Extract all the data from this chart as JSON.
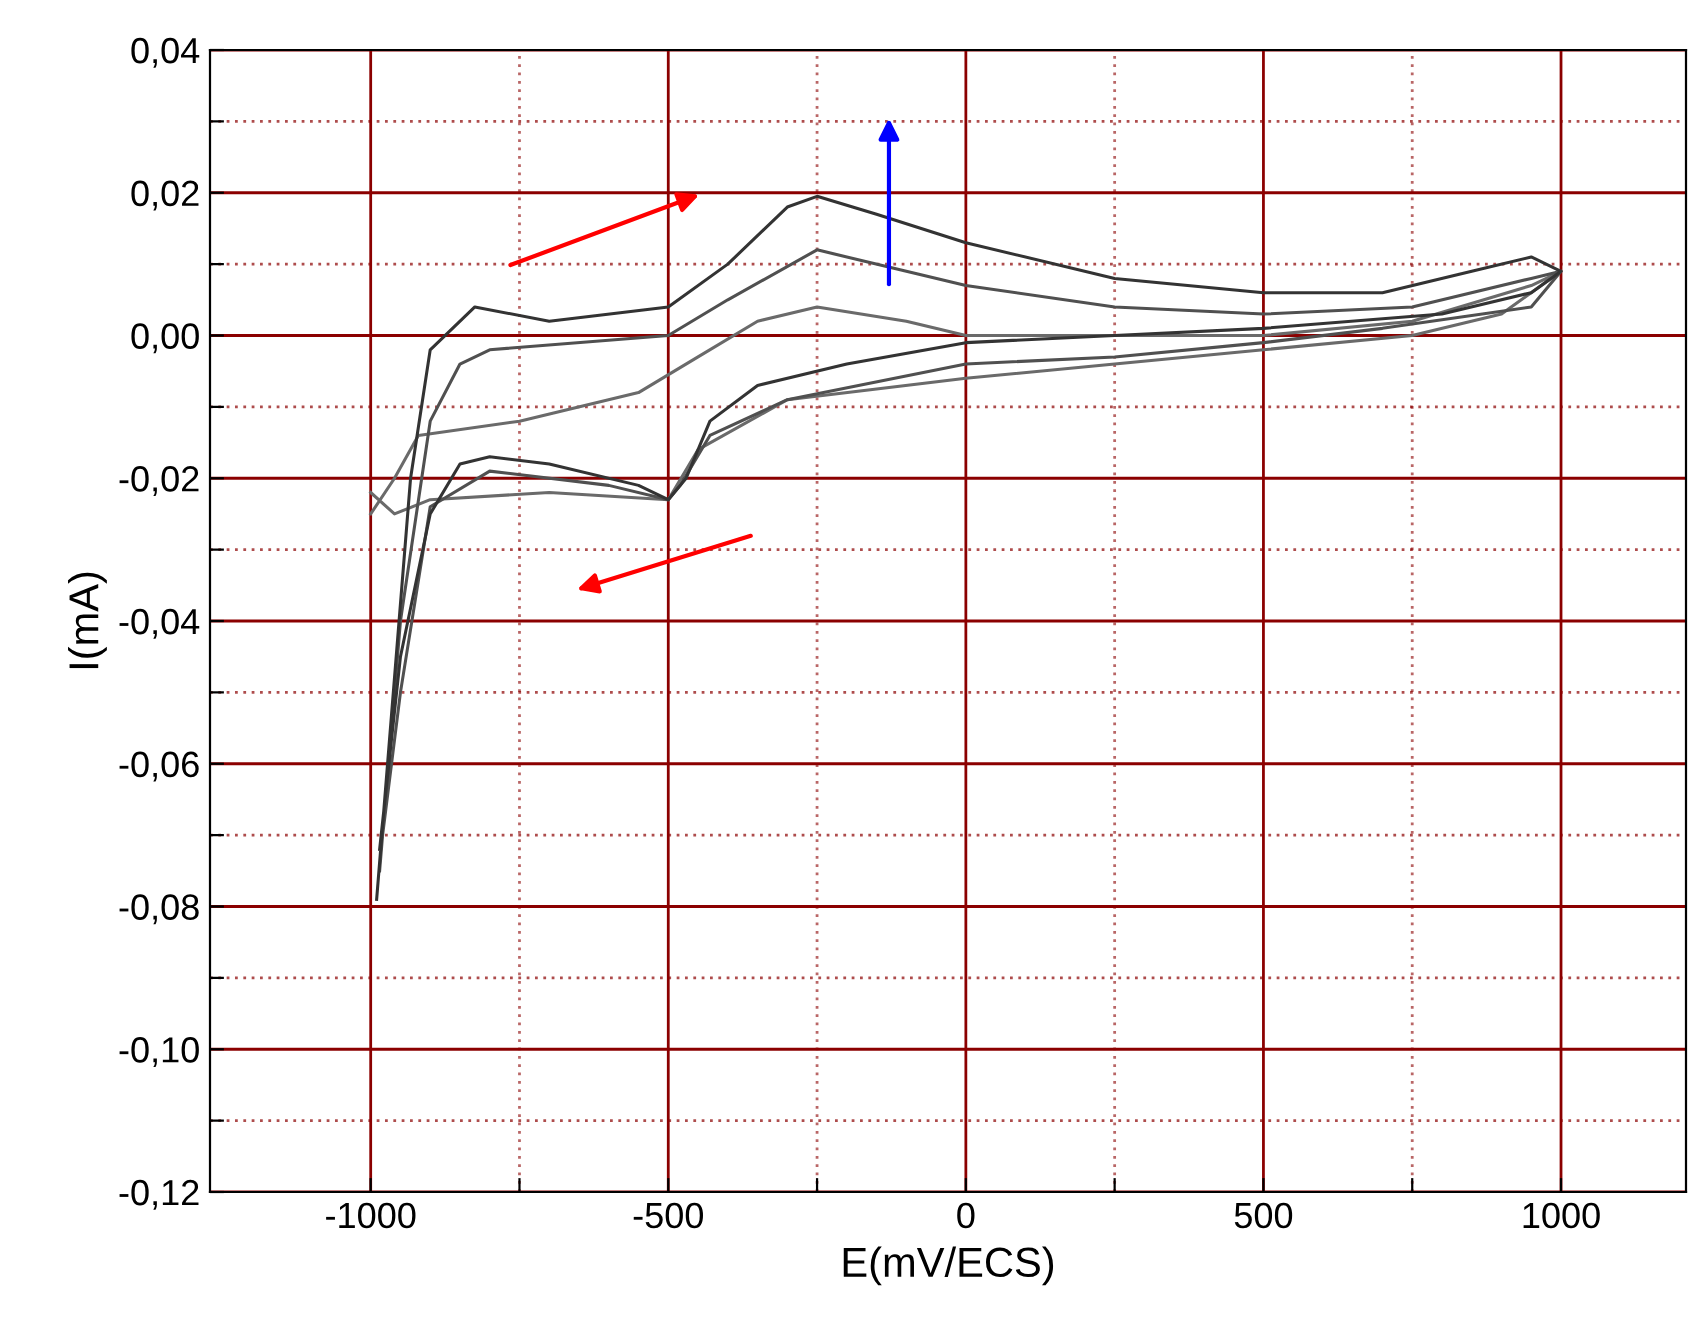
{
  "chart_data": {
    "type": "line",
    "xlabel": "E(mV/ECS)",
    "ylabel": "I(mA)",
    "xlim": [
      -1270,
      1210
    ],
    "ylim": [
      -0.12,
      0.04
    ],
    "xticks": [
      -1000,
      {
        "value": -750,
        "label": null
      },
      -500,
      {
        "value": -250,
        "label": null
      },
      0,
      {
        "value": 250,
        "label": null
      },
      500,
      {
        "value": 750,
        "label": null
      },
      1000
    ],
    "yticks": [
      {
        "value": -0.12,
        "label": "-0,12"
      },
      {
        "value": -0.11,
        "label": null
      },
      {
        "value": -0.1,
        "label": "-0,10"
      },
      {
        "value": -0.09,
        "label": null
      },
      {
        "value": -0.08,
        "label": "-0,08"
      },
      {
        "value": -0.07,
        "label": null
      },
      {
        "value": -0.06,
        "label": "-0,06"
      },
      {
        "value": -0.05,
        "label": null
      },
      {
        "value": -0.04,
        "label": "-0,04"
      },
      {
        "value": -0.03,
        "label": null
      },
      {
        "value": -0.02,
        "label": "-0,02"
      },
      {
        "value": -0.01,
        "label": null
      },
      {
        "value": 0.0,
        "label": "0,00"
      },
      {
        "value": 0.01,
        "label": null
      },
      {
        "value": 0.02,
        "label": "0,02"
      },
      {
        "value": 0.03,
        "label": null
      },
      {
        "value": 0.04,
        "label": "0,04"
      }
    ],
    "grid": true,
    "marker": "none",
    "line_style": "solid",
    "series": [
      {
        "color": "#6a6a6a",
        "x": [
          -1000,
          -960,
          -920,
          -750,
          -550,
          -450,
          -350,
          -250,
          -100,
          0,
          250,
          500,
          750,
          950,
          1000,
          900,
          750,
          500,
          250,
          0,
          -300,
          -450,
          -500,
          -700,
          -900,
          -960,
          -1000
        ],
        "values": [
          -0.025,
          -0.02,
          -0.014,
          -0.012,
          -0.008,
          -0.003,
          0.002,
          0.004,
          0.002,
          0.0,
          0.0,
          0.0,
          0.002,
          0.007,
          0.009,
          0.003,
          0.0,
          -0.002,
          -0.004,
          -0.006,
          -0.009,
          -0.016,
          -0.023,
          -0.022,
          -0.023,
          -0.025,
          -0.022
        ]
      },
      {
        "color": "#505050",
        "x": [
          -985,
          -950,
          -900,
          -850,
          -800,
          -500,
          -400,
          -250,
          -100,
          0,
          250,
          500,
          750,
          950,
          1000,
          950,
          700,
          500,
          250,
          0,
          -300,
          -430,
          -480,
          -500,
          -600,
          -800,
          -900,
          -950,
          -980
        ],
        "values": [
          -0.075,
          -0.04,
          -0.012,
          -0.004,
          -0.002,
          0.0,
          0.005,
          0.012,
          0.009,
          0.007,
          0.004,
          0.003,
          0.004,
          0.008,
          0.009,
          0.004,
          0.001,
          -0.001,
          -0.003,
          -0.004,
          -0.009,
          -0.014,
          -0.021,
          -0.023,
          -0.021,
          -0.019,
          -0.024,
          -0.05,
          -0.07
        ]
      },
      {
        "color": "#333333",
        "x": [
          -990,
          -933,
          -900,
          -825,
          -700,
          -500,
          -400,
          -300,
          -250,
          -150,
          0,
          250,
          500,
          700,
          850,
          950,
          1000,
          950,
          800,
          500,
          250,
          0,
          -200,
          -350,
          -430,
          -470,
          -500,
          -550,
          -700,
          -800,
          -850,
          -900,
          -950,
          -985
        ],
        "values": [
          -0.079,
          -0.02,
          -0.002,
          0.004,
          0.002,
          0.004,
          0.01,
          0.018,
          0.0195,
          0.017,
          0.013,
          0.008,
          0.006,
          0.006,
          0.009,
          0.011,
          0.009,
          0.006,
          0.003,
          0.001,
          0.0,
          -0.001,
          -0.004,
          -0.007,
          -0.012,
          -0.02,
          -0.023,
          -0.021,
          -0.018,
          -0.017,
          -0.018,
          -0.025,
          -0.045,
          -0.072
        ]
      }
    ]
  }
}
